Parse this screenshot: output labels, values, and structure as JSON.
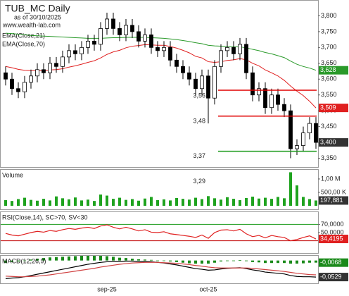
{
  "chart_data": {
    "type": "candlestick",
    "title": "TUB_MC Daily",
    "subtitle": "as of 30/10/2025",
    "source": "www.wealth-lab.com",
    "categories": [
      null,
      null,
      null,
      null,
      null,
      null,
      null,
      null,
      null,
      null,
      null,
      null,
      null,
      null,
      null,
      null,
      "sep-25",
      null,
      null,
      null,
      null,
      null,
      null,
      null,
      null,
      null,
      null,
      null,
      null,
      null,
      null,
      null,
      "oct-25",
      null,
      null,
      null,
      null,
      null,
      null,
      null,
      null,
      null,
      null,
      null,
      null,
      null,
      null,
      null,
      null,
      null
    ],
    "open": [
      3.62,
      3.6,
      3.57,
      3.56,
      3.59,
      3.61,
      3.63,
      3.62,
      3.65,
      3.64,
      3.67,
      3.69,
      3.68,
      3.7,
      3.72,
      3.71,
      3.76,
      3.79,
      3.76,
      3.74,
      3.77,
      3.75,
      3.72,
      3.74,
      3.7,
      3.69,
      3.7,
      3.66,
      3.64,
      3.62,
      3.6,
      3.57,
      3.61,
      3.54,
      3.64,
      3.69,
      3.7,
      3.68,
      3.71,
      3.62,
      3.55,
      3.57,
      3.51,
      3.55,
      3.52,
      3.5,
      3.38,
      3.39,
      3.43,
      3.46
    ],
    "high": [
      3.64,
      3.62,
      3.59,
      3.61,
      3.63,
      3.65,
      3.65,
      3.67,
      3.67,
      3.69,
      3.71,
      3.71,
      3.72,
      3.74,
      3.74,
      3.78,
      3.81,
      3.81,
      3.78,
      3.79,
      3.79,
      3.77,
      3.76,
      3.76,
      3.72,
      3.72,
      3.72,
      3.68,
      3.66,
      3.64,
      3.62,
      3.63,
      3.63,
      3.66,
      3.71,
      3.72,
      3.72,
      3.73,
      3.73,
      3.64,
      3.59,
      3.59,
      3.57,
      3.57,
      3.54,
      3.52,
      3.41,
      3.45,
      3.48,
      3.48
    ],
    "low": [
      3.58,
      3.55,
      3.54,
      3.54,
      3.57,
      3.59,
      3.6,
      3.6,
      3.62,
      3.62,
      3.65,
      3.66,
      3.66,
      3.68,
      3.69,
      3.69,
      3.74,
      3.74,
      3.72,
      3.72,
      3.73,
      3.7,
      3.7,
      3.68,
      3.67,
      3.67,
      3.64,
      3.62,
      3.6,
      3.58,
      3.55,
      3.55,
      3.46,
      3.52,
      3.62,
      3.67,
      3.66,
      3.66,
      3.6,
      3.53,
      3.53,
      3.49,
      3.49,
      3.5,
      3.48,
      3.35,
      3.36,
      3.37,
      3.41,
      3.38
    ],
    "close": [
      3.6,
      3.57,
      3.56,
      3.59,
      3.61,
      3.63,
      3.62,
      3.65,
      3.64,
      3.67,
      3.69,
      3.68,
      3.7,
      3.72,
      3.71,
      3.76,
      3.79,
      3.76,
      3.74,
      3.77,
      3.75,
      3.72,
      3.74,
      3.7,
      3.69,
      3.7,
      3.66,
      3.64,
      3.62,
      3.6,
      3.57,
      3.61,
      3.54,
      3.64,
      3.69,
      3.7,
      3.68,
      3.71,
      3.62,
      3.55,
      3.57,
      3.51,
      3.55,
      3.52,
      3.5,
      3.38,
      3.39,
      3.43,
      3.46,
      3.4
    ],
    "close_label": "3,400",
    "ylim": [
      3.32,
      3.85
    ],
    "yticks": [
      {
        "value": 3.35,
        "label": "3,350"
      },
      {
        "value": 3.4,
        "label": "3,400"
      },
      {
        "value": 3.45,
        "label": "3,450"
      },
      {
        "value": 3.5,
        "label": "3,500"
      },
      {
        "value": 3.55,
        "label": "3,550"
      },
      {
        "value": 3.6,
        "label": "3,600"
      },
      {
        "value": 3.65,
        "label": "3,650"
      },
      {
        "value": 3.7,
        "label": "3,700"
      },
      {
        "value": 3.75,
        "label": "3,750"
      },
      {
        "value": 3.8,
        "label": "3,800"
      }
    ],
    "series": [
      {
        "name": "EMA(Close,21)",
        "color": "#e02020",
        "last_label": "3,509",
        "values": [
          3.64,
          3.636,
          3.631,
          3.628,
          3.627,
          3.627,
          3.627,
          3.629,
          3.63,
          3.633,
          3.638,
          3.642,
          3.647,
          3.653,
          3.658,
          3.667,
          3.678,
          3.686,
          3.691,
          3.699,
          3.704,
          3.706,
          3.709,
          3.708,
          3.707,
          3.707,
          3.703,
          3.698,
          3.691,
          3.683,
          3.672,
          3.667,
          3.655,
          3.653,
          3.655,
          3.659,
          3.661,
          3.665,
          3.661,
          3.65,
          3.642,
          3.629,
          3.62,
          3.61,
          3.596,
          3.578,
          3.562,
          3.548,
          3.53,
          3.509
        ]
      },
      {
        "name": "EMA(Close,70)",
        "color": "#2a9a2a",
        "last_label": "3,628",
        "values": [
          3.745,
          3.744,
          3.742,
          3.74,
          3.738,
          3.737,
          3.736,
          3.735,
          3.734,
          3.733,
          3.732,
          3.731,
          3.73,
          3.729,
          3.729,
          3.729,
          3.73,
          3.731,
          3.731,
          3.732,
          3.732,
          3.732,
          3.732,
          3.731,
          3.73,
          3.729,
          3.727,
          3.725,
          3.722,
          3.719,
          3.715,
          3.712,
          3.707,
          3.705,
          3.704,
          3.703,
          3.702,
          3.702,
          3.699,
          3.694,
          3.69,
          3.684,
          3.68,
          3.674,
          3.668,
          3.657,
          3.647,
          3.64,
          3.635,
          3.628
        ]
      }
    ],
    "levels": [
      {
        "value": 3.565,
        "color": "#e00000"
      },
      {
        "value": 3.483,
        "color": "#e00000"
      },
      {
        "value": 3.372,
        "color": "#1a9a1a"
      }
    ],
    "annotations": [
      {
        "value": 3.56,
        "label": "3,56"
      },
      {
        "value": 3.48,
        "label": "3,48"
      },
      {
        "value": 3.37,
        "label": "3,37"
      },
      {
        "value": 3.29,
        "label": "3,29"
      }
    ],
    "panels": [
      {
        "title": "Volume",
        "type": "bar",
        "color": "#1fa31f",
        "last_label": "197,881",
        "values": [
          210000,
          180000,
          250000,
          300000,
          220000,
          190000,
          260000,
          200000,
          350000,
          280000,
          240000,
          310000,
          200000,
          230000,
          180000,
          420000,
          380000,
          260000,
          300000,
          220000,
          250000,
          190000,
          270000,
          330000,
          210000,
          240000,
          200000,
          290000,
          260000,
          230000,
          300000,
          250000,
          360000,
          280000,
          230000,
          320000,
          260000,
          210000,
          290000,
          340000,
          270000,
          300000,
          260000,
          330000,
          280000,
          1250000,
          760000,
          330000,
          250000,
          197881
        ],
        "ylim": [
          0,
          1340000
        ],
        "yticks": [
          {
            "value": 500000,
            "label": "500,00 K"
          },
          {
            "value": 1000000,
            "label": "1,00 M"
          }
        ]
      },
      {
        "title": "RSI(Close,14), SC>70, SV<30",
        "type": "line",
        "ylim": [
          0,
          100
        ],
        "yticks": [
          {
            "value": 50,
            "label": "50,0000"
          },
          {
            "value": 70,
            "label": "70,0000"
          }
        ],
        "levels": [
          {
            "value": 70,
            "color": "#1a9a1a"
          },
          {
            "value": 30,
            "color": "#c00000"
          }
        ],
        "series": [
          {
            "color": "#e02020",
            "last_label": "34,4195",
            "values": [
              48,
              44,
              42,
              46,
              50,
              53,
              51,
              55,
              53,
              57,
              60,
              58,
              61,
              63,
              60,
              66,
              69,
              63,
              59,
              63,
              59,
              54,
              57,
              51,
              50,
              52,
              47,
              45,
              43,
              41,
              38,
              44,
              36,
              50,
              56,
              57,
              54,
              58,
              47,
              40,
              43,
              37,
              43,
              40,
              38,
              30,
              33,
              38,
              42,
              34.4195
            ]
          }
        ]
      },
      {
        "title": "MACD(12,26,9)",
        "type": "line",
        "ylim": [
          -0.073,
          0.015
        ],
        "series": [
          {
            "color": "#000000",
            "last_label": "-0,0529",
            "values": [
              -0.058,
              -0.056,
              -0.055,
              -0.052,
              -0.048,
              -0.044,
              -0.04,
              -0.036,
              -0.032,
              -0.028,
              -0.024,
              -0.02,
              -0.016,
              -0.012,
              -0.009,
              -0.006,
              -0.004,
              -0.003,
              -0.003,
              -0.002,
              -0.002,
              -0.003,
              -0.003,
              -0.004,
              -0.006,
              -0.008,
              -0.011,
              -0.014,
              -0.018,
              -0.022,
              -0.026,
              -0.028,
              -0.031,
              -0.03,
              -0.027,
              -0.025,
              -0.024,
              -0.023,
              -0.026,
              -0.03,
              -0.033,
              -0.037,
              -0.039,
              -0.041,
              -0.043,
              -0.048,
              -0.051,
              -0.052,
              -0.052,
              -0.0529
            ]
          },
          {
            "color": "#d04040",
            "values": [
              -0.05,
              -0.051,
              -0.052,
              -0.052,
              -0.051,
              -0.05,
              -0.048,
              -0.046,
              -0.043,
              -0.04,
              -0.037,
              -0.034,
              -0.031,
              -0.028,
              -0.025,
              -0.021,
              -0.018,
              -0.015,
              -0.012,
              -0.01,
              -0.008,
              -0.007,
              -0.006,
              -0.006,
              -0.006,
              -0.007,
              -0.008,
              -0.009,
              -0.011,
              -0.013,
              -0.016,
              -0.018,
              -0.021,
              -0.023,
              -0.024,
              -0.024,
              -0.024,
              -0.024,
              -0.024,
              -0.025,
              -0.027,
              -0.029,
              -0.031,
              -0.033,
              -0.035,
              -0.038,
              -0.041,
              -0.043,
              -0.045,
              -0.046
            ]
          },
          {
            "type": "bar",
            "color": "#1a8a1a",
            "last_label": "-0,0068",
            "values": [
              -0.008,
              -0.005,
              -0.003,
              0,
              0.003,
              0.006,
              0.008,
              0.01,
              0.011,
              0.012,
              0.013,
              0.014,
              0.015,
              0.015,
              0.015,
              0.015,
              0.014,
              0.012,
              0.009,
              0.008,
              0.006,
              0.004,
              0.003,
              0.002,
              0,
              -0.001,
              -0.003,
              -0.005,
              -0.007,
              -0.009,
              -0.01,
              -0.01,
              -0.01,
              -0.007,
              -0.003,
              -0.001,
              0,
              0.001,
              -0.002,
              -0.005,
              -0.006,
              -0.008,
              -0.008,
              -0.008,
              -0.008,
              -0.01,
              -0.01,
              -0.009,
              -0.007,
              -0.0068
            ]
          }
        ]
      }
    ]
  }
}
